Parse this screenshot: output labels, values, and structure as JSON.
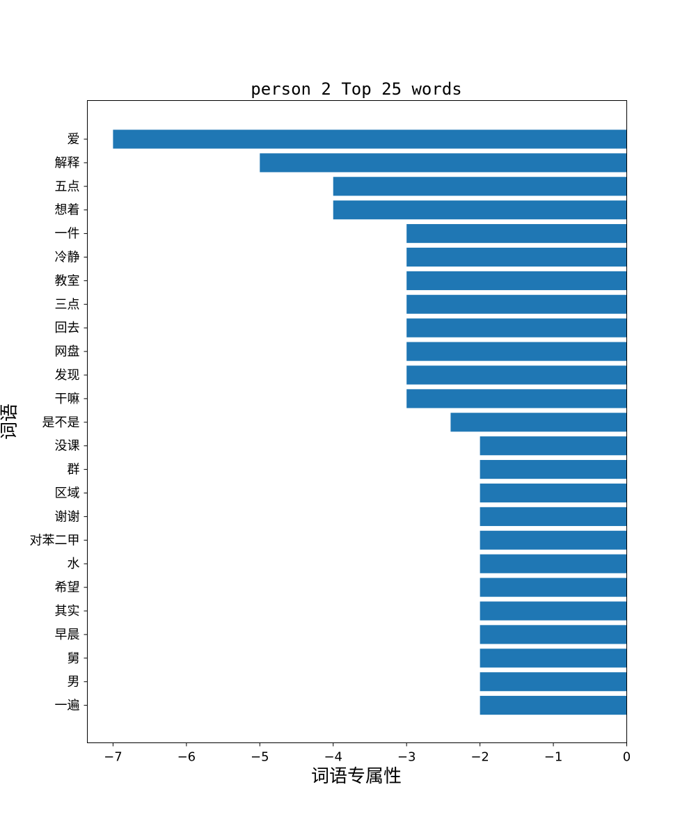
{
  "chart_data": {
    "type": "bar",
    "orientation": "horizontal",
    "title": "person 2 Top 25 words",
    "xlabel": "词语专属性",
    "ylabel": "词语",
    "categories": [
      "爱",
      "解释",
      "五点",
      "想着",
      "一件",
      "冷静",
      "教室",
      "三点",
      "回去",
      "网盘",
      "发现",
      "干嘛",
      "是不是",
      "没课",
      "群",
      "区域",
      "谢谢",
      "对苯二甲",
      "水",
      "希望",
      "其实",
      "早晨",
      "舅",
      "男",
      "一遍"
    ],
    "values": [
      -7,
      -5,
      -4,
      -4,
      -3,
      -3,
      -3,
      -3,
      -3,
      -3,
      -3,
      -3,
      -2.4,
      -2,
      -2,
      -2,
      -2,
      -2,
      -2,
      -2,
      -2,
      -2,
      -2,
      -2,
      -2
    ],
    "xlim": [
      -7.35,
      0
    ],
    "xticks": [
      -7,
      -6,
      -5,
      -4,
      -3,
      -2,
      -1,
      0
    ],
    "xtick_labels": [
      "−7",
      "−6",
      "−5",
      "−4",
      "−3",
      "−2",
      "−1",
      "0"
    ],
    "bar_color": "#1f77b4",
    "grid": false
  }
}
